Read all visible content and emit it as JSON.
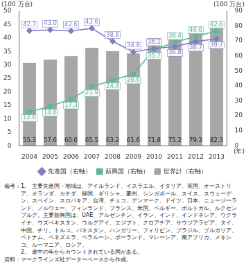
{
  "chart_data": {
    "type": "bar",
    "ylabel": "(100 万台)",
    "y2label": "(100 万台)",
    "xlabel": "(年)",
    "categories": [
      "2004",
      "2005",
      "2006",
      "2007",
      "2008",
      "2009",
      "2010",
      "2011",
      "2012",
      "2013"
    ],
    "series": [
      {
        "name": "世界計（右軸）",
        "type": "bar",
        "axis": "y2",
        "color": "#a6a6a6",
        "values": [
          55.3,
          57.6,
          60.0,
          65.5,
          63.2,
          61.6,
          71.8,
          75.2,
          79.3,
          82.3
        ],
        "value_labels": [
          "55.3",
          "57.6",
          "60.0",
          "65.5",
          "63.2",
          "61.6",
          "71.8",
          "75.2",
          "79.3",
          "82.3"
        ]
      },
      {
        "name": "先進国（右軸）",
        "type": "line",
        "color": "#7f7fc4",
        "marker": "diamond",
        "line_style": "solid",
        "values": [
          42.7,
          43.0,
          42.6,
          43.6,
          38.8,
          34.8,
          36.1,
          36.8,
          38.7,
          39.7
        ],
        "value_labels": [
          "42.7",
          "43.0",
          "42.6",
          "43.6",
          "38.8",
          "34.8",
          "36.1",
          "36.8",
          "38.7",
          "39.7"
        ]
      },
      {
        "name": "新興国（右軸）",
        "type": "line",
        "color": "#5bb89e",
        "marker": "square",
        "line_style": "solid",
        "values": [
          12.6,
          14.6,
          17.3,
          21.9,
          24.4,
          26.6,
          35.7,
          38.4,
          40.6,
          42.6
        ],
        "value_labels": [
          "12.6",
          "14.6",
          "17.3",
          "21.9",
          "24.4",
          "26.6",
          "35.7",
          "38.4",
          "40.6",
          "42.6"
        ]
      }
    ],
    "ylim": [
      0,
      50
    ],
    "yticks": [
      0,
      5,
      10,
      15,
      20,
      25,
      30,
      35,
      40,
      45,
      50
    ],
    "y2lim": [
      0,
      90
    ],
    "y2ticks": [
      0,
      10,
      20,
      30,
      40,
      50,
      60,
      70,
      80,
      90
    ],
    "grid": false,
    "legend": "bottom",
    "data_labels": true,
    "notes_label": "備考：",
    "notes": [
      "1.　主要先進国・地域は、アイルランド、イスラエル、イタリア、英国、オーストリア、オランダ、カナダ、韓国、ギリシャ、豪州、シンガポール、スイス、スウェーデン、スペイン、スロバキア、台湾、チェコ、デンマーク、ドイツ、日本、ニュージーランド、ノルウェー、フィンランド、フランス、米国、ベルギー、ポルトガル、ルクセンブルグ。主要新興国は、UAE、アルゼンチン、イラン、インド、インドネシア、ウクライナ、ウズベキスタン、ウルグアイ、エジプト、クロアチア、サウジアラビア、タイ、中国、チリ、トルコ、パキスタン、ハンガリー、フィリピン、ブラジル、ブルガリア、ベトナム、ベネズエラ、ベラルーシ、ポーランド、マレーシア、南アフリカ、メキシコ、ルーマニア、ロシア。",
      "2.　途中の年からカウントされている国がある。"
    ],
    "source_label": "資料：",
    "source": "マークラインズ社データーベースから作成。"
  }
}
